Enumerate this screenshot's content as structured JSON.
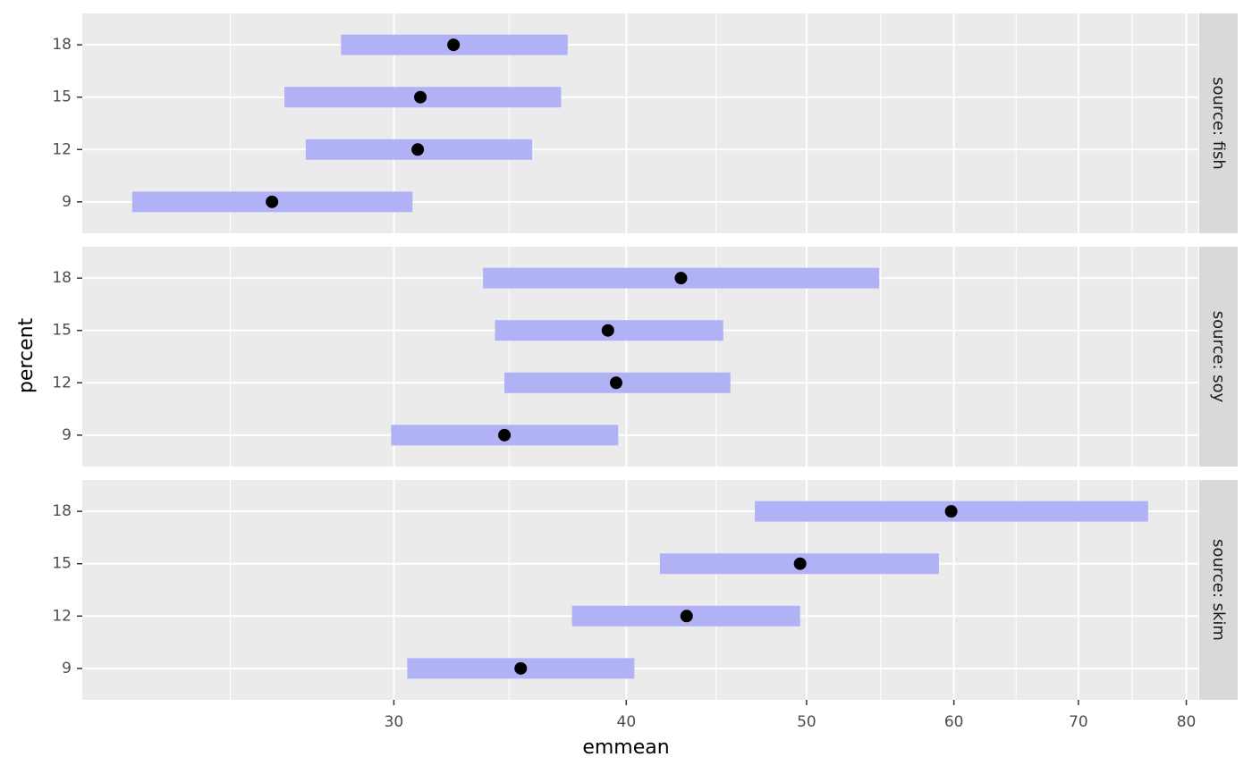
{
  "chart_data": {
    "type": "forest",
    "xlabel": "emmean",
    "ylabel": "percent",
    "log_x": true,
    "xlim": [
      20.4,
      81.2
    ],
    "xticks": [
      30,
      40,
      50,
      60,
      70,
      80
    ],
    "xminor": [
      24.5,
      34.6,
      44.7,
      54.8,
      64.8,
      74.8
    ],
    "grid": true,
    "bar_color": "#b1b1f6",
    "point_color": "#000000",
    "panels": [
      {
        "strip": "source: fish",
        "categories": [
          "9",
          "12",
          "15",
          "18"
        ],
        "values": [
          25.8,
          30.9,
          31.0,
          32.3
        ],
        "lower": [
          21.7,
          26.9,
          26.2,
          28.1
        ],
        "upper": [
          30.7,
          35.6,
          36.9,
          37.2
        ]
      },
      {
        "strip": "source: soy",
        "categories": [
          "9",
          "12",
          "15",
          "18"
        ],
        "values": [
          34.4,
          39.5,
          39.1,
          42.8
        ],
        "lower": [
          29.9,
          34.4,
          34.0,
          33.5
        ],
        "upper": [
          39.6,
          45.5,
          45.1,
          54.7
        ]
      },
      {
        "strip": "source: skim",
        "categories": [
          "9",
          "12",
          "15",
          "18"
        ],
        "values": [
          35.1,
          43.1,
          49.6,
          59.8
        ],
        "lower": [
          30.5,
          37.4,
          41.7,
          46.9
        ],
        "upper": [
          40.4,
          49.6,
          58.9,
          76.3
        ]
      }
    ]
  }
}
